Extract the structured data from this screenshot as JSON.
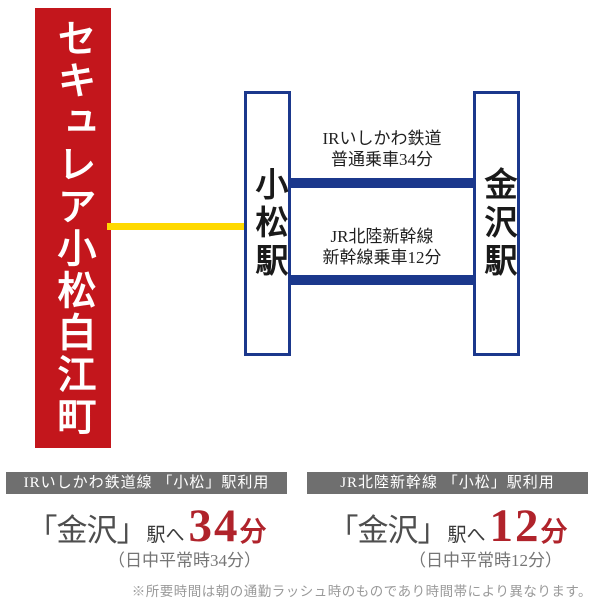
{
  "banner": {
    "title": "セキュレア小松白江町"
  },
  "diagram": {
    "stations": [
      {
        "name": "小松駅"
      },
      {
        "name": "金沢駅"
      }
    ],
    "routes": [
      {
        "line1": "IRいしかわ鉄道",
        "line2": "普通乗車34分"
      },
      {
        "line1": "JR北陸新幹線",
        "line2": "新幹線乗車12分"
      }
    ]
  },
  "summary": [
    {
      "header": "IRいしかわ鉄道線 「小松」駅利用",
      "dest_bracket": "「金沢」",
      "dest_suffix": "駅へ",
      "minutes": "34",
      "unit": "分",
      "note": "（日中平常時34分）"
    },
    {
      "header": "JR北陸新幹線 「小松」駅利用",
      "dest_bracket": "「金沢」",
      "dest_suffix": "駅へ",
      "minutes": "12",
      "unit": "分",
      "note": "（日中平常時12分）"
    }
  ],
  "footnote": "※所要時間は朝の通勤ラッシュ時のものであり時間帯により異なります。",
  "colors": {
    "banner_red": "#c3161c",
    "rail_blue": "#1b388c",
    "accent_yellow": "#ffd900",
    "time_red": "#b0232b",
    "header_gray": "#6f6f6f"
  }
}
